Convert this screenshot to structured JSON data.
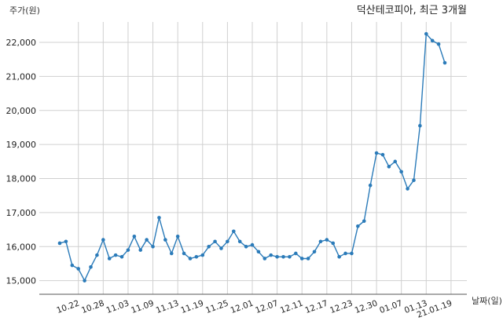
{
  "chart_data": {
    "type": "line",
    "title": "덕산테코피아, 최근 3개월",
    "xlabel": "날짜(일)",
    "ylabel": "주가(원)",
    "ylim": [
      14600,
      22600
    ],
    "yticks": [
      15000,
      16000,
      17000,
      18000,
      19000,
      20000,
      21000,
      22000
    ],
    "ytick_labels": [
      "15,000",
      "16,000",
      "17,000",
      "18,000",
      "19,000",
      "20,000",
      "21,000",
      "22,000"
    ],
    "xtick_labels": [
      "10.22",
      "10.28",
      "11.03",
      "11.09",
      "11.13",
      "11.19",
      "11.25",
      "12.01",
      "12.07",
      "12.11",
      "12.17",
      "12.23",
      "12.30",
      "01.07",
      "01.13",
      "21.01.19"
    ],
    "xtick_index": [
      3,
      7,
      11,
      15,
      19,
      23,
      27,
      31,
      35,
      39,
      43,
      47,
      51,
      55,
      59,
      63
    ],
    "grid": true,
    "color": "#2b7bb9",
    "series": [
      {
        "values": [
          16100,
          16150,
          15450,
          15350,
          15000,
          15400,
          15750,
          16200,
          15650,
          15750,
          15700,
          15900,
          16300,
          15900,
          16200,
          16000,
          16850,
          16200,
          15800,
          16300,
          15800,
          15650,
          15700,
          15750,
          16000,
          16150,
          15950,
          16150,
          16450,
          16150,
          16000,
          16050,
          15850,
          15650,
          15750,
          15700,
          15700,
          15700,
          15800,
          15650,
          15650,
          15850,
          16150,
          16200,
          16100,
          15700,
          15800,
          15800,
          16600,
          16750,
          17800,
          18750,
          18700,
          18350,
          18500,
          18200,
          17700,
          17950,
          19550,
          22250,
          22050,
          21950,
          21400
        ]
      }
    ]
  }
}
